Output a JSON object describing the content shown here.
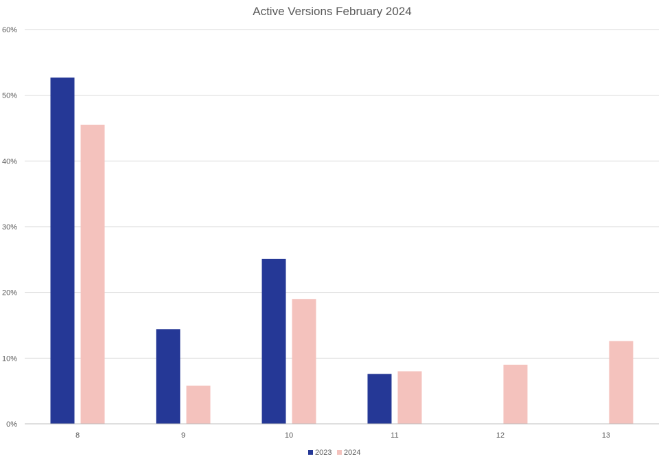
{
  "chart_data": {
    "type": "bar",
    "title": "Active Versions February 2024",
    "xlabel": "",
    "ylabel": "",
    "categories": [
      "8",
      "9",
      "10",
      "11",
      "12",
      "13"
    ],
    "series": [
      {
        "name": "2023",
        "values": [
          52.7,
          14.4,
          25.1,
          7.6,
          null,
          null
        ],
        "color": "#253896"
      },
      {
        "name": "2024",
        "values": [
          45.5,
          5.8,
          19.0,
          8.0,
          9.0,
          12.6
        ],
        "color": "#f4c2bd"
      }
    ],
    "yticks": [
      "0%",
      "10%",
      "20%",
      "30%",
      "40%",
      "50%",
      "60%"
    ],
    "ylim": [
      0,
      60
    ],
    "grid": true,
    "legend_position": "bottom"
  }
}
